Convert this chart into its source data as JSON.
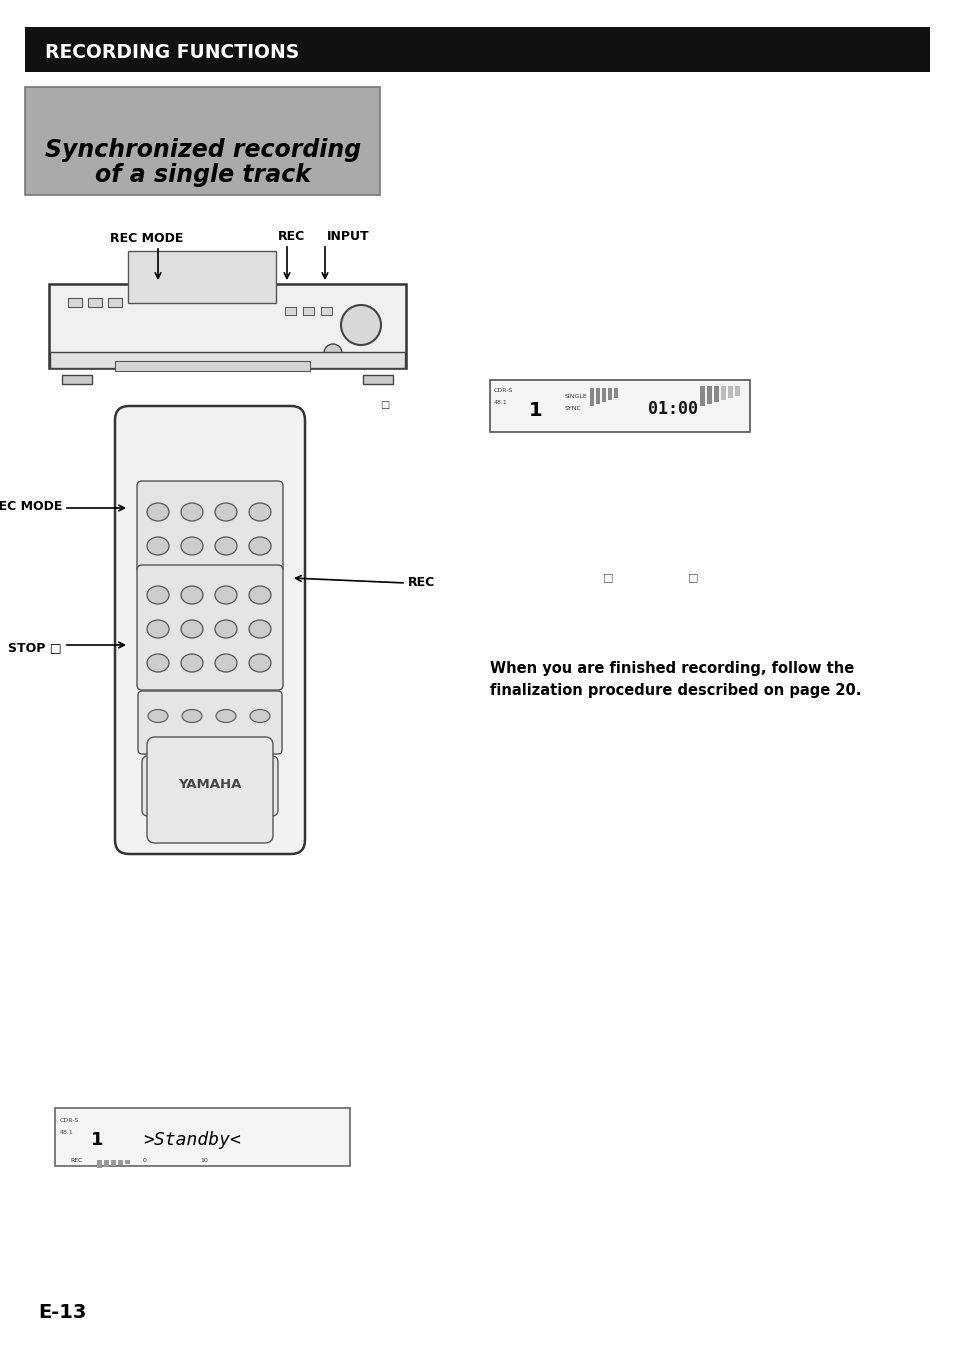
{
  "bg_color": "#ffffff",
  "header_bg": "#111111",
  "header_text": "RECORDING FUNCTIONS",
  "header_text_color": "#ffffff",
  "title_bg": "#aaaaaa",
  "title_line1": "Synchronized recording",
  "title_line2": "of a single track",
  "title_text_color": "#000000",
  "page_number": "E-13",
  "finalization_line1": "When you are finished recording, follow the",
  "finalization_line2": "finalization procedure described on page 20."
}
